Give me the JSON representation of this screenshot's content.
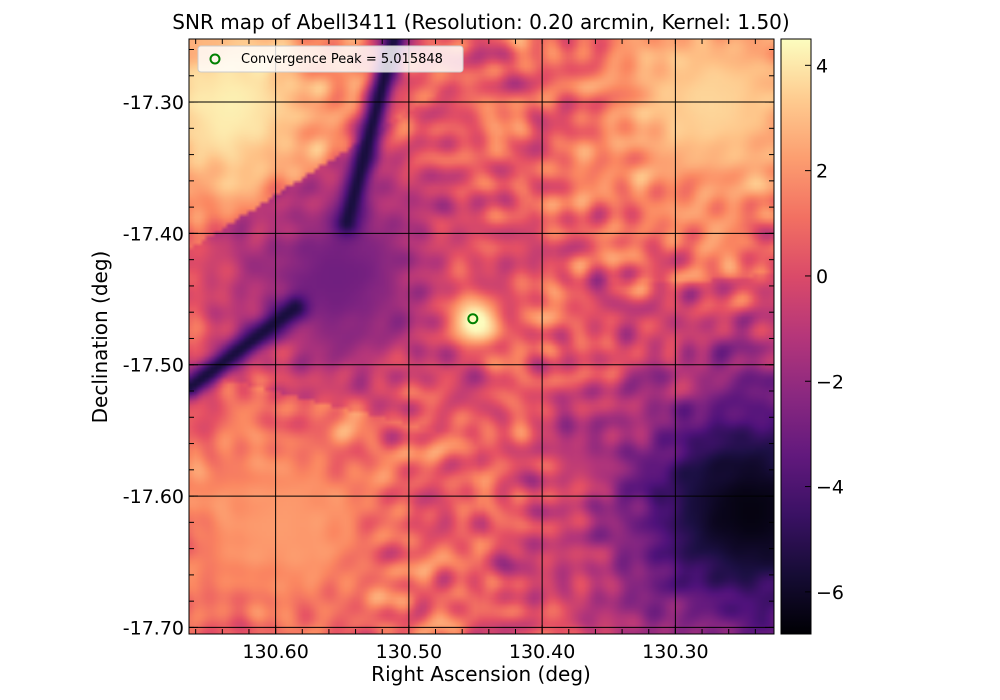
{
  "chart_data": {
    "type": "heatmap",
    "title": "SNR map of Abell3411  (Resolution: 0.20 arcmin, Kernel: 1.50)",
    "xlabel": "Right Ascension (deg)",
    "ylabel": "Declination (deg)",
    "x_axis": {
      "inverted": true,
      "range": [
        130.665,
        130.226
      ],
      "ticks": [
        130.6,
        130.5,
        130.4,
        130.3
      ],
      "tick_labels": [
        "130.60",
        "130.50",
        "130.40",
        "130.30"
      ]
    },
    "y_axis": {
      "range": [
        -17.705,
        -17.252
      ],
      "ticks": [
        -17.3,
        -17.4,
        -17.5,
        -17.6,
        -17.7
      ],
      "tick_labels": [
        "-17.30",
        "-17.40",
        "-17.50",
        "-17.60",
        "-17.70"
      ]
    },
    "grid": true,
    "colormap": "magma",
    "colorbar": {
      "range": [
        -6.8,
        4.5
      ],
      "ticks": [
        4,
        2,
        0,
        -2,
        -4,
        -6
      ],
      "tick_labels": [
        "4",
        "2",
        "0",
        "−2",
        "−4",
        "−6"
      ]
    },
    "legend": {
      "position": "top-left",
      "entries": [
        {
          "label": "Convergence Peak = 5.015848",
          "marker": "open-circle",
          "color": "#008000"
        }
      ]
    },
    "peak": {
      "ra": 130.452,
      "dec": -17.465,
      "value": 5.015848
    },
    "field_features": [
      {
        "kind": "high",
        "ra": 130.635,
        "dec": -17.3,
        "value": 4.2
      },
      {
        "kind": "high",
        "ra": 130.275,
        "dec": -17.3,
        "value": 3.6
      },
      {
        "kind": "low",
        "ra": 130.245,
        "dec": -17.61,
        "value": -6.5
      },
      {
        "kind": "low",
        "ra": 130.555,
        "dec": -17.43,
        "value": -3.0
      },
      {
        "kind": "high",
        "ra": 130.6,
        "dec": -17.62,
        "value": 2.2
      }
    ],
    "streaks": [
      {
        "ra_start": 130.513,
        "dec_start": -17.252,
        "ra_end": 130.548,
        "dec_end": -17.39,
        "value": -5.5
      },
      {
        "ra_start": 130.665,
        "dec_start": -17.515,
        "ra_end": 130.587,
        "dec_end": -17.455,
        "value": -5.5
      }
    ]
  }
}
